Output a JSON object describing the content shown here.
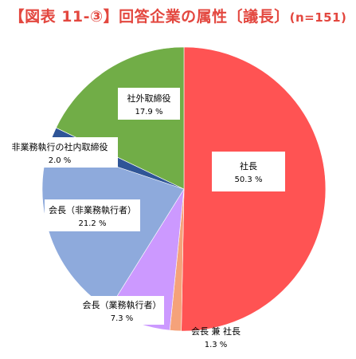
{
  "title": "【図表 11-③】回答企業の属性〔議長〕",
  "subtitle": "(n=151)",
  "chart_data": {
    "type": "pie",
    "title": "【図表 11-③】回答企業の属性〔議長〕",
    "n_label": "(n=151)",
    "slices": [
      {
        "label": "社長",
        "value": 50.3,
        "value_label": "50.3 %",
        "color": "#ff5353"
      },
      {
        "label": "会長 兼 社長",
        "value": 1.3,
        "value_label": "1.3 %",
        "color": "#f5a27a"
      },
      {
        "label": "会長（業務執行者）",
        "value": 7.3,
        "value_label": "7.3 %",
        "color": "#cc99ff"
      },
      {
        "label": "会長（非業務執行者）",
        "value": 21.2,
        "value_label": "21.2 %",
        "color": "#8eaadc"
      },
      {
        "label": "非業務執行の社内取締役",
        "value": 2.0,
        "value_label": "2.0 %",
        "color": "#2f5597"
      },
      {
        "label": "社外取締役",
        "value": 17.9,
        "value_label": "17.9 %",
        "color": "#71ad47"
      }
    ]
  }
}
